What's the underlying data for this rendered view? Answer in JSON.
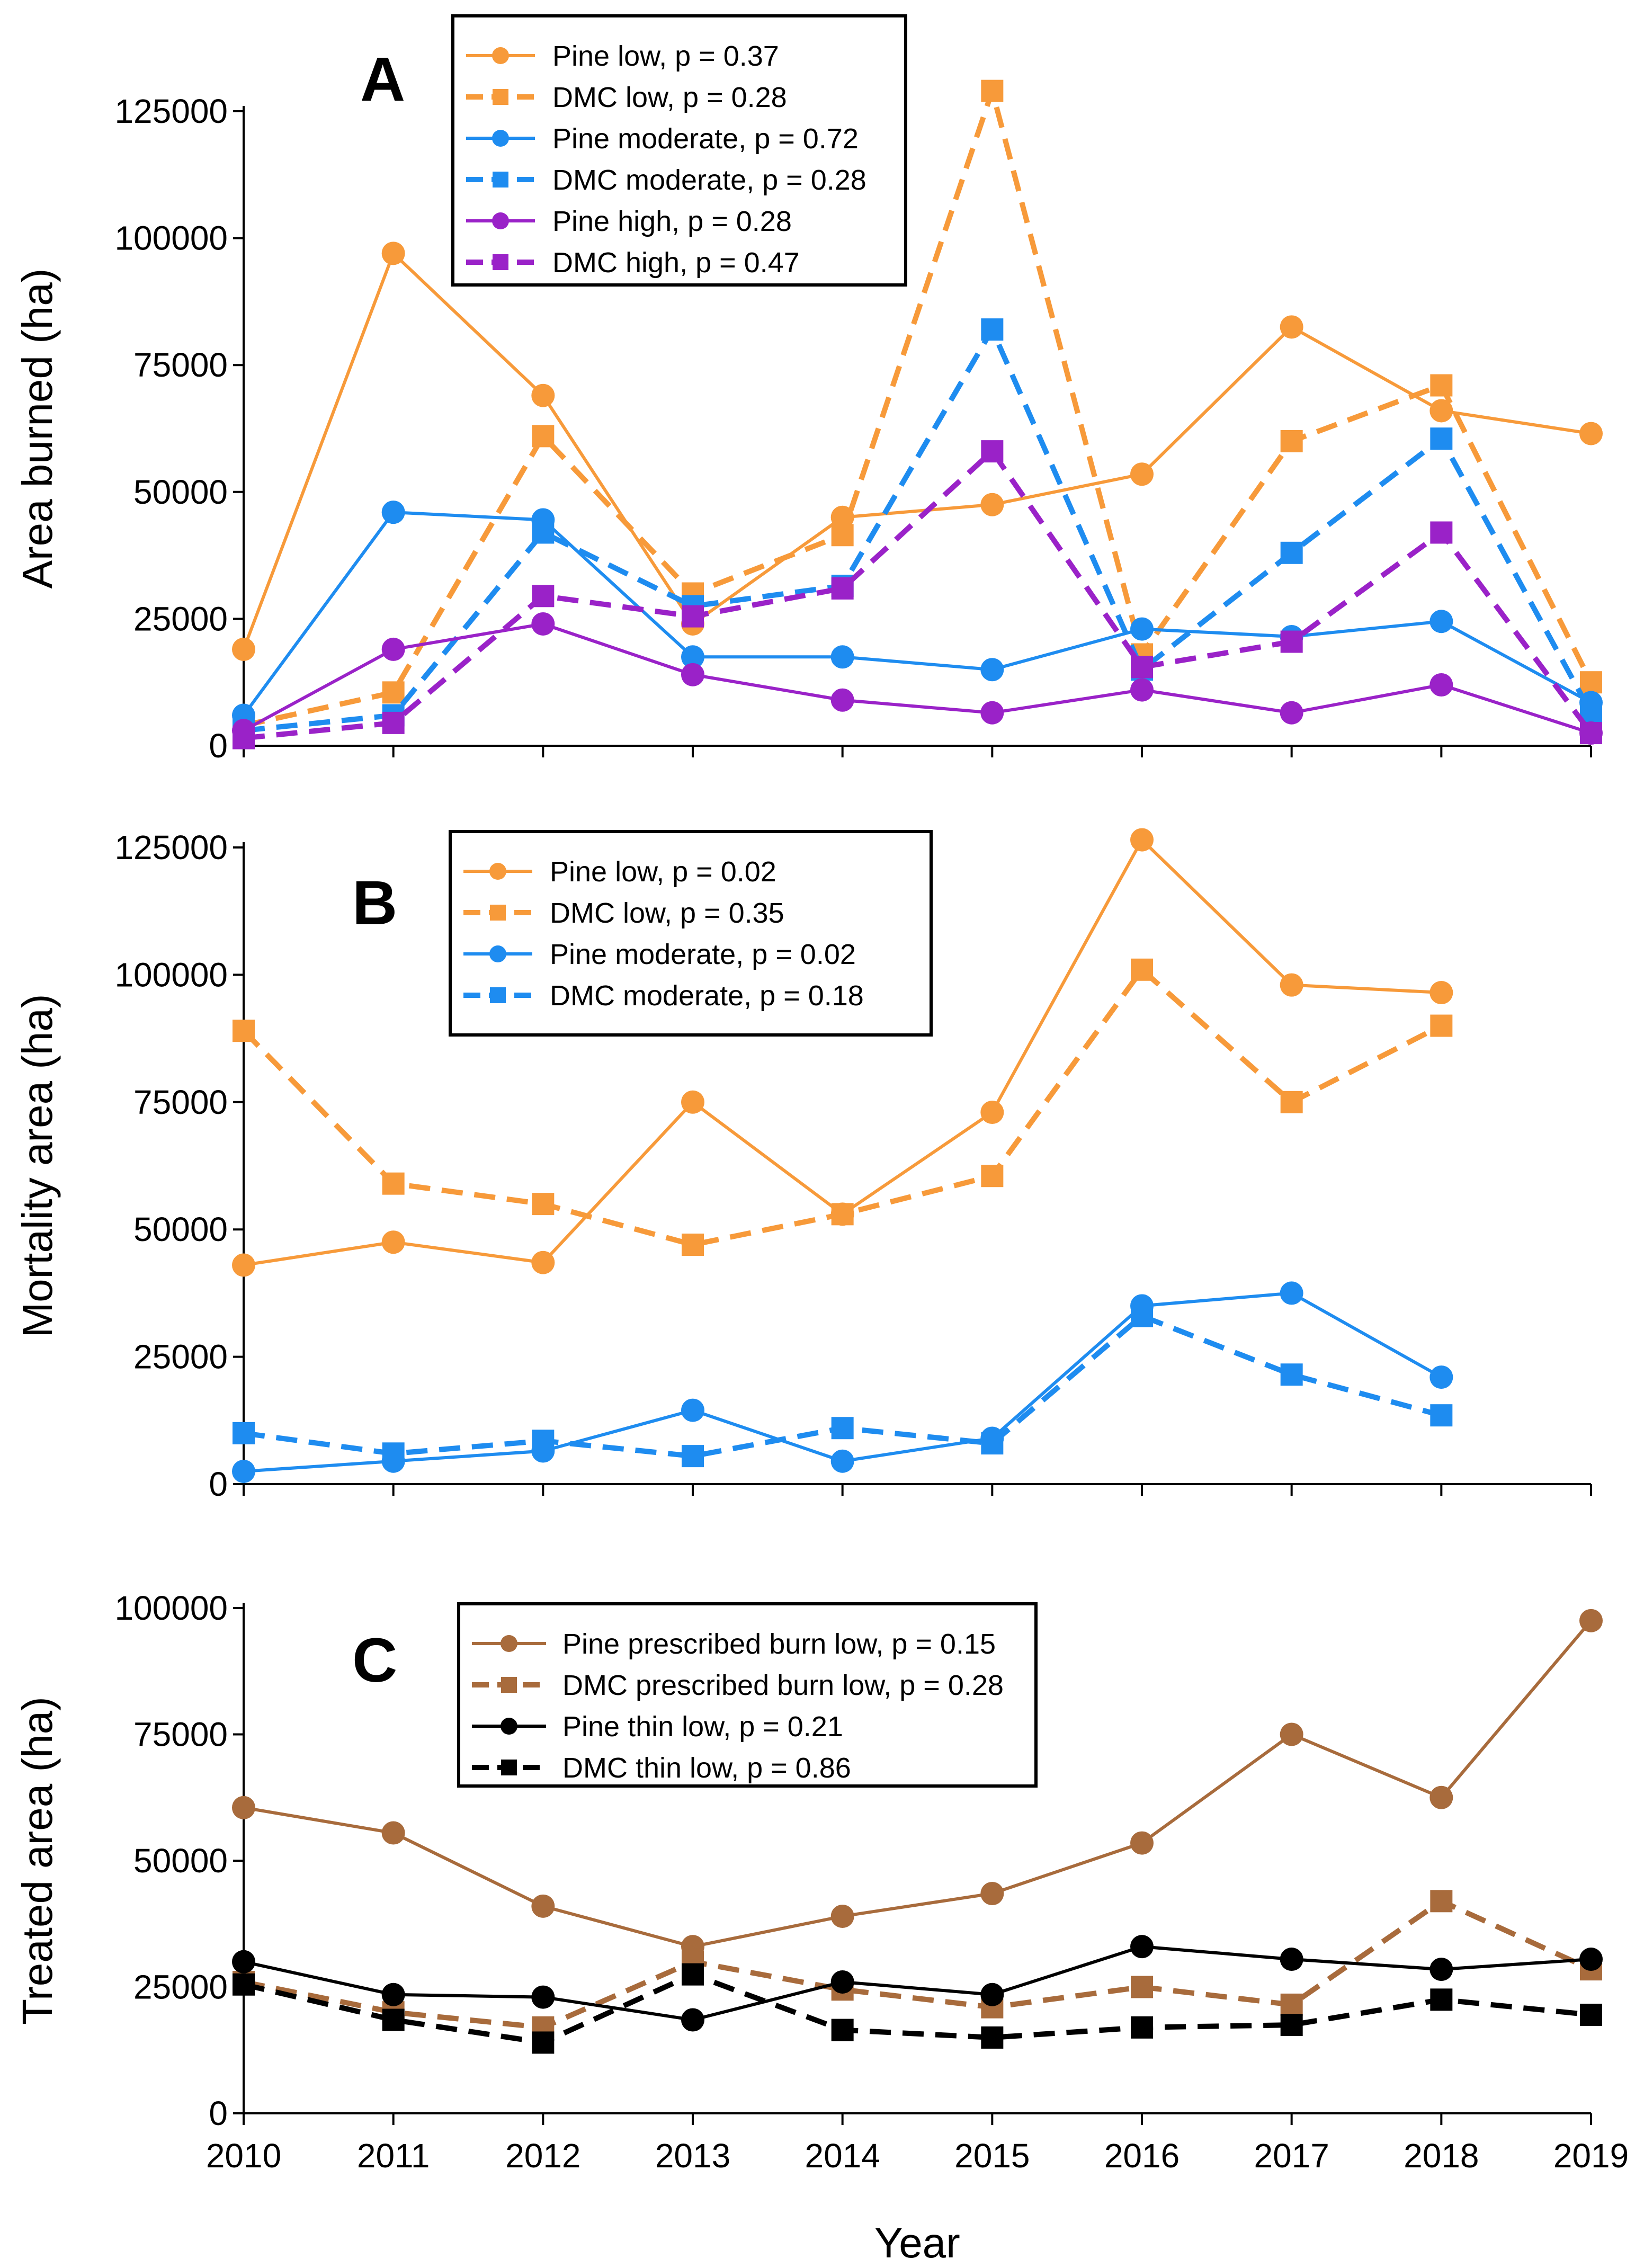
{
  "chart_data": [
    {
      "type": "line",
      "panel_letter": "A",
      "ylabel": "Area burned (ha)",
      "ylim": [
        0,
        125000
      ],
      "yticks": [
        "0",
        "25000",
        "50000",
        "75000",
        "100000",
        "125000"
      ],
      "x": [
        2010,
        2011,
        2012,
        2013,
        2014,
        2015,
        2016,
        2017,
        2018,
        2019
      ],
      "series": [
        {
          "name": "Pine low, p = 0.37",
          "color": "#F79A3A",
          "dash": false,
          "marker": "circle",
          "values": [
            19000,
            97000,
            69000,
            24000,
            45000,
            47500,
            53500,
            82500,
            66000,
            61500
          ]
        },
        {
          "name": "DMC low, p = 0.28",
          "color": "#F79A3A",
          "dash": true,
          "marker": "square",
          "values": [
            4000,
            10500,
            61000,
            30000,
            41500,
            129000,
            18000,
            60000,
            71000,
            12500
          ]
        },
        {
          "name": "Pine moderate, p = 0.72",
          "color": "#1E8CF0",
          "dash": false,
          "marker": "circle",
          "values": [
            6000,
            46000,
            44500,
            17500,
            17500,
            15000,
            23000,
            21500,
            24500,
            8500
          ]
        },
        {
          "name": "DMC moderate, p = 0.28",
          "color": "#1E8CF0",
          "dash": true,
          "marker": "square",
          "values": [
            3000,
            6000,
            42000,
            27500,
            31500,
            82000,
            15000,
            38000,
            60500,
            6500
          ]
        },
        {
          "name": "Pine high, p = 0.28",
          "color": "#9A22C8",
          "dash": false,
          "marker": "circle",
          "values": [
            3000,
            19000,
            24000,
            14000,
            9000,
            6500,
            11000,
            6500,
            12000,
            2500
          ]
        },
        {
          "name": "DMC high, p = 0.47",
          "color": "#9A22C8",
          "dash": true,
          "marker": "square",
          "values": [
            1500,
            4500,
            29500,
            25500,
            31000,
            58000,
            15500,
            20500,
            42000,
            2500
          ]
        }
      ]
    },
    {
      "type": "line",
      "panel_letter": "B",
      "ylabel": "Mortality area (ha)",
      "ylim": [
        0,
        125000
      ],
      "yticks": [
        "0",
        "25000",
        "50000",
        "75000",
        "100000",
        "125000"
      ],
      "x": [
        2010,
        2011,
        2012,
        2013,
        2014,
        2015,
        2016,
        2017,
        2018,
        2019
      ],
      "series": [
        {
          "name": "Pine low, p = 0.02",
          "color": "#F79A3A",
          "dash": false,
          "marker": "circle",
          "values": [
            43000,
            47500,
            43500,
            75000,
            53000,
            73000,
            126500,
            98000,
            96500,
            null
          ]
        },
        {
          "name": "DMC low, p = 0.35",
          "color": "#F79A3A",
          "dash": true,
          "marker": "square",
          "values": [
            89000,
            59000,
            55000,
            47000,
            53000,
            60500,
            101000,
            75000,
            90000,
            null
          ]
        },
        {
          "name": "Pine moderate, p = 0.02",
          "color": "#1E8CF0",
          "dash": false,
          "marker": "circle",
          "values": [
            2500,
            4500,
            6500,
            14500,
            4500,
            9000,
            35000,
            37500,
            21000,
            null
          ]
        },
        {
          "name": "DMC moderate, p = 0.18",
          "color": "#1E8CF0",
          "dash": true,
          "marker": "square",
          "values": [
            10000,
            6000,
            8500,
            5500,
            11000,
            8000,
            33000,
            21500,
            13500,
            null
          ]
        }
      ]
    },
    {
      "type": "line",
      "panel_letter": "C",
      "ylabel": "Treated area (ha)",
      "xlabel": "Year",
      "ylim": [
        0,
        100000
      ],
      "yticks": [
        "0",
        "25000",
        "50000",
        "75000",
        "100000"
      ],
      "x": [
        2010,
        2011,
        2012,
        2013,
        2014,
        2015,
        2016,
        2017,
        2018,
        2019
      ],
      "series": [
        {
          "name": "Pine prescribed burn low, p = 0.15",
          "color": "#A86B3C",
          "dash": false,
          "marker": "circle",
          "values": [
            60500,
            55500,
            41000,
            33000,
            39000,
            43500,
            53500,
            75000,
            62500,
            97500
          ]
        },
        {
          "name": "DMC prescribed burn low, p = 0.28",
          "color": "#A86B3C",
          "dash": true,
          "marker": "square",
          "values": [
            26000,
            20000,
            17000,
            30000,
            24500,
            21000,
            25000,
            21500,
            42000,
            28500
          ]
        },
        {
          "name": "Pine thin low, p = 0.21",
          "color": "#000000",
          "dash": false,
          "marker": "circle",
          "values": [
            30000,
            23500,
            23000,
            18500,
            26000,
            23500,
            33000,
            30500,
            28500,
            30500
          ]
        },
        {
          "name": "DMC thin low, p = 0.86",
          "color": "#000000",
          "dash": true,
          "marker": "square",
          "values": [
            25500,
            18500,
            14000,
            27500,
            16500,
            15000,
            17000,
            17500,
            22500,
            19500
          ]
        }
      ]
    }
  ]
}
